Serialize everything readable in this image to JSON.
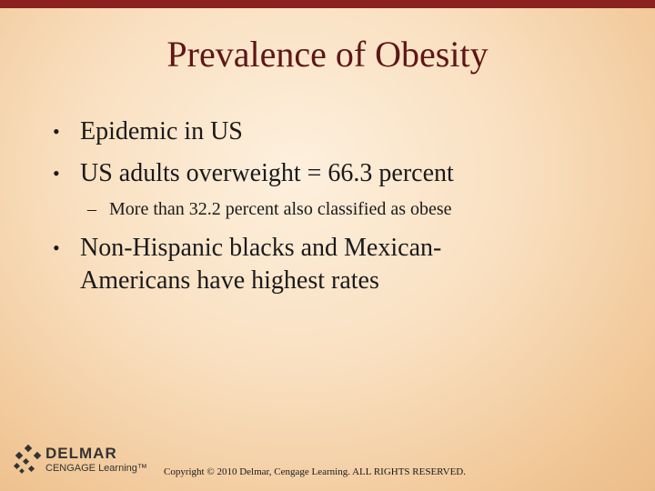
{
  "slide": {
    "title": "Prevalence of Obesity",
    "bullets": [
      {
        "text": "Epidemic in US"
      },
      {
        "text": "US adults overweight = 66.3 percent"
      },
      {
        "text_line1": "Non-Hispanic blacks and Mexican-",
        "text_line2": "Americans have highest rates"
      }
    ],
    "sub_bullets": [
      {
        "text": "More than 32.2 percent also classified as obese"
      }
    ],
    "bullet_glyph": "•",
    "sub_glyph": "–"
  },
  "footer": {
    "logo_line1": "DELMAR",
    "logo_line2": "CENGAGE Learning",
    "logo_trademark": "™",
    "copyright": "Copyright © 2010 Delmar, Cengage Learning. ALL RIGHTS RESERVED."
  },
  "colors": {
    "top_bar": "#8b2220",
    "title": "#5e1616",
    "body_text": "#1a1a1a"
  }
}
